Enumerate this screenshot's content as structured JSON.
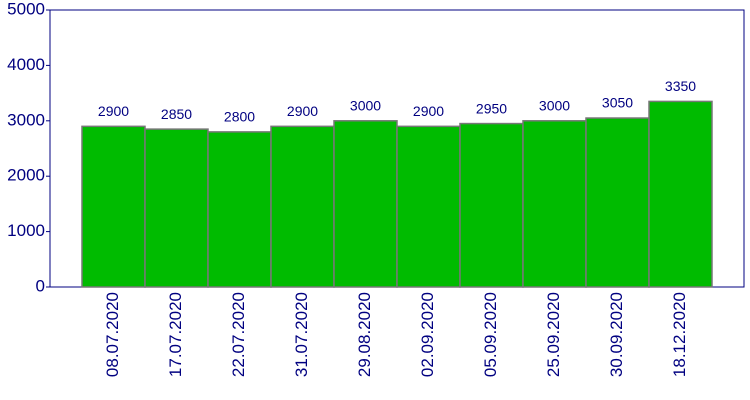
{
  "chart_data": {
    "type": "bar",
    "categories": [
      "08.07.2020",
      "17.07.2020",
      "22.07.2020",
      "31.07.2020",
      "29.08.2020",
      "02.09.2020",
      "05.09.2020",
      "25.09.2020",
      "30.09.2020",
      "18.12.2020"
    ],
    "values": [
      2900,
      2850,
      2800,
      2900,
      3000,
      2900,
      2950,
      3000,
      3050,
      3350
    ],
    "color": "#00bb00",
    "ylim": [
      0,
      5000
    ],
    "yticks": [
      0,
      1000,
      2000,
      3000,
      4000,
      5000
    ],
    "grid": false
  }
}
